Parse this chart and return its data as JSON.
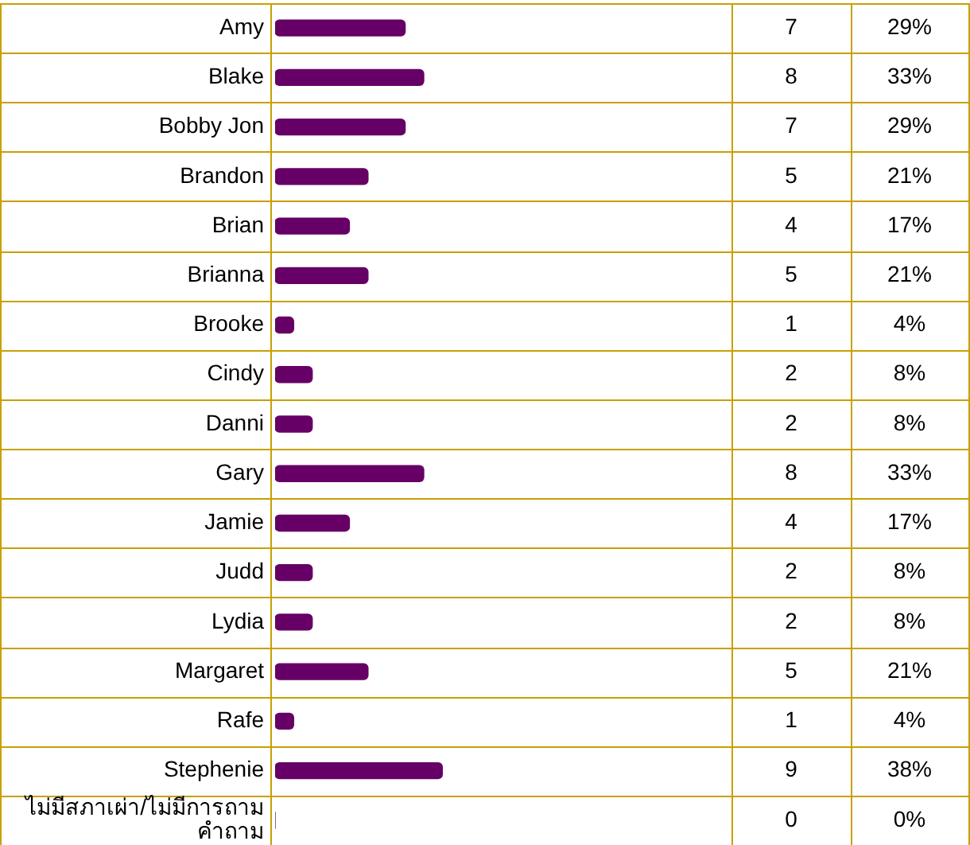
{
  "chart_data": {
    "type": "bar",
    "orientation": "horizontal",
    "categories": [
      "Amy",
      "Blake",
      "Bobby Jon",
      "Brandon",
      "Brian",
      "Brianna",
      "Brooke",
      "Cindy",
      "Danni",
      "Gary",
      "Jamie",
      "Judd",
      "Lydia",
      "Margaret",
      "Rafe",
      "Stephenie",
      "ไม่มีสภาเผ่า/ไม่มีการถามคำถาม"
    ],
    "values": [
      7,
      8,
      7,
      5,
      4,
      5,
      1,
      2,
      2,
      8,
      4,
      2,
      2,
      5,
      1,
      9,
      0
    ],
    "annotations": [
      "29%",
      "33%",
      "29%",
      "21%",
      "17%",
      "21%",
      "4%",
      "8%",
      "8%",
      "33%",
      "17%",
      "8%",
      "8%",
      "21%",
      "4%",
      "38%",
      "0%"
    ],
    "color": "#660066",
    "data_labels": true,
    "grid": true
  }
}
